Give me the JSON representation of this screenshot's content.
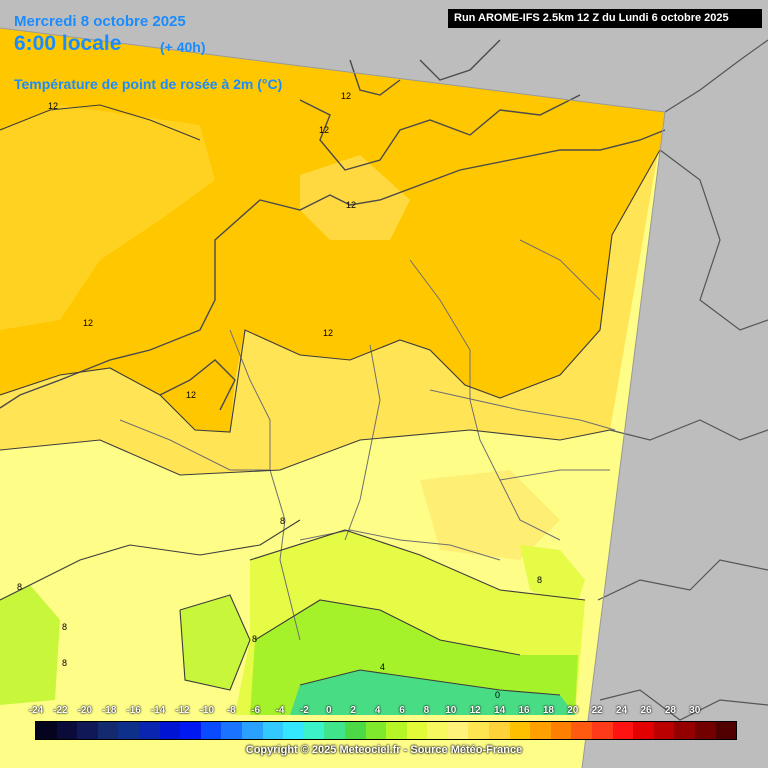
{
  "header": {
    "date": "Mercredi 8 octobre 2025",
    "time": "6:00 locale",
    "offset": "(+ 40h)",
    "parameter": "Température de point de rosée à 2m (°C)"
  },
  "run_info": "Run AROME-IFS 2.5km 12 Z du Lundi 6 octobre 2025",
  "contour_labels": [
    "12",
    "12",
    "12",
    "12",
    "12",
    "12",
    "12",
    "8",
    "8",
    "8",
    "8",
    "8",
    "8",
    "4",
    "0"
  ],
  "legend": {
    "ticks": [
      "-24",
      "-22",
      "-20",
      "-18",
      "-16",
      "-14",
      "-12",
      "-10",
      "-8",
      "-6",
      "-4",
      "-2",
      "0",
      "2",
      "4",
      "6",
      "8",
      "10",
      "12",
      "14",
      "16",
      "18",
      "20",
      "22",
      "24",
      "26",
      "28",
      "30"
    ],
    "colors": [
      "#05041f",
      "#0b0b3a",
      "#101858",
      "#132b6e",
      "#0e2f8a",
      "#0a25b0",
      "#0014d4",
      "#0018f2",
      "#0a4bff",
      "#1a74ff",
      "#2aa0ff",
      "#33c8ff",
      "#35e6ff",
      "#3cf2c8",
      "#40e48a",
      "#4bda46",
      "#7fe92c",
      "#b6f526",
      "#e2fa38",
      "#f7f860",
      "#fff27a",
      "#ffe650",
      "#ffd23a",
      "#ffc000",
      "#ffa000",
      "#ff7f00",
      "#ff5a10",
      "#ff3a18",
      "#ff1212",
      "#e20000",
      "#bb0000",
      "#940000",
      "#720000",
      "#500000"
    ]
  },
  "copyright": "Copyright © 2025 Meteociel.fr - Source Météo-France"
}
